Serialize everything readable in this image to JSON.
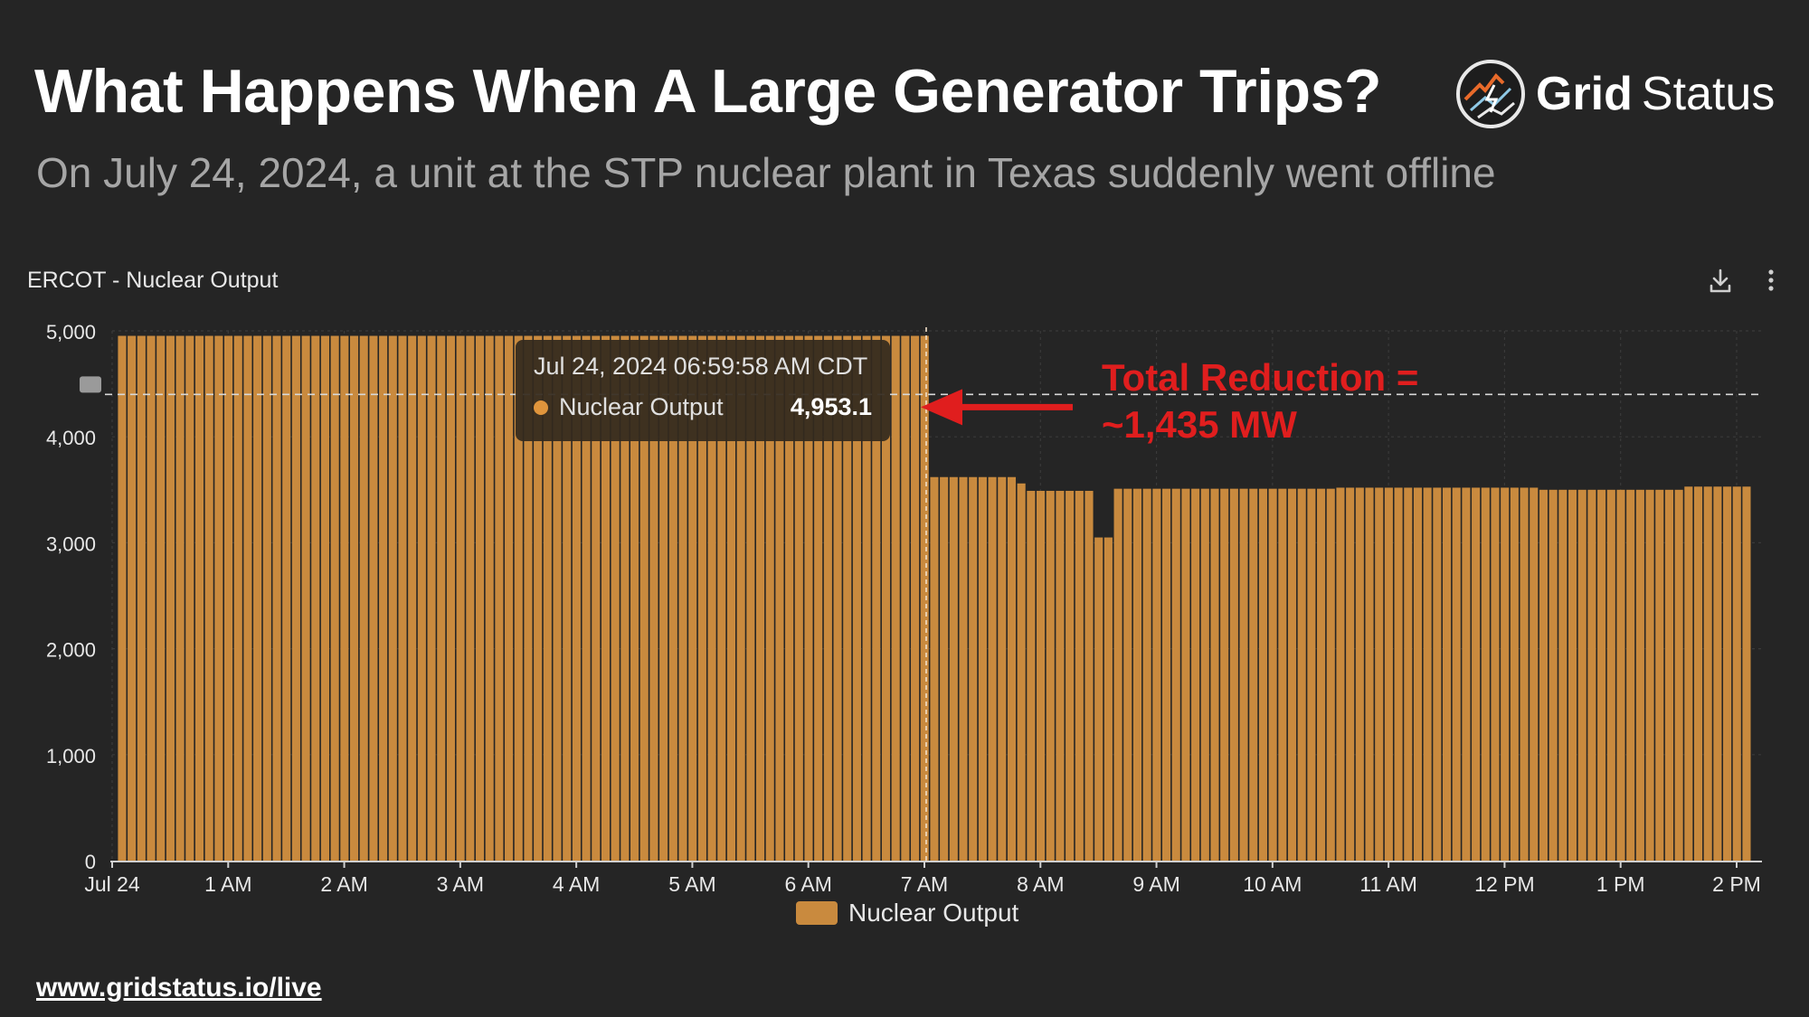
{
  "header": {
    "title": "What Happens When A Large Generator Trips?",
    "subtitle": "On July 24, 2024, a unit at the STP nuclear plant in Texas suddenly went offline"
  },
  "brand": {
    "bold": "Grid",
    "light": "Status"
  },
  "chart_panel": {
    "title": "ERCOT - Nuclear Output",
    "download_icon": "download-icon",
    "menu_icon": "kebab-menu-icon"
  },
  "tooltip": {
    "timestamp": "Jul 24, 2024 06:59:58 AM CDT",
    "series": "Nuclear Output",
    "value": "4,953.1"
  },
  "annotation": {
    "line1": "Total Reduction =",
    "line2": "~1,435 MW"
  },
  "legend": {
    "label": "Nuclear Output"
  },
  "footer": {
    "link": "www.gridstatus.io/live"
  },
  "colors": {
    "background": "#252525",
    "bar": "#c98a3e",
    "annotation": "#e01e1e",
    "grid": "#3a3a3a"
  },
  "chart_data": {
    "type": "bar",
    "title": "ERCOT - Nuclear Output",
    "xlabel": "",
    "ylabel": "",
    "ylim": [
      0,
      5000
    ],
    "yticks": [
      0,
      1000,
      2000,
      3000,
      4000,
      5000
    ],
    "ytick_labels": [
      "0",
      "1,000",
      "2,000",
      "3,000",
      "4,000",
      "5,000"
    ],
    "xlim_hours": [
      0,
      14
    ],
    "xticks": [
      0,
      1,
      2,
      3,
      4,
      5,
      6,
      7,
      8,
      9,
      10,
      11,
      12,
      13,
      14
    ],
    "xtick_labels": [
      "Jul 24",
      "1 AM",
      "2 AM",
      "3 AM",
      "4 AM",
      "5 AM",
      "6 AM",
      "7 AM",
      "8 AM",
      "9 AM",
      "10 AM",
      "11 AM",
      "12 PM",
      "1 PM",
      "2 PM"
    ],
    "interval_minutes": 5,
    "series": [
      {
        "name": "Nuclear Output",
        "segments": [
          {
            "start_hour": 0.0,
            "end_hour": 7.0,
            "value": 4953
          },
          {
            "start_hour": 7.0,
            "end_hour": 7.75,
            "value": 3620
          },
          {
            "start_hour": 7.75,
            "end_hour": 7.833,
            "value": 3560
          },
          {
            "start_hour": 7.833,
            "end_hour": 8.4,
            "value": 3490
          },
          {
            "start_hour": 8.4,
            "end_hour": 8.583,
            "value": 3050
          },
          {
            "start_hour": 8.583,
            "end_hour": 10.5,
            "value": 3510
          },
          {
            "start_hour": 10.5,
            "end_hour": 12.25,
            "value": 3520
          },
          {
            "start_hour": 12.25,
            "end_hour": 13.5,
            "value": 3500
          },
          {
            "start_hour": 13.5,
            "end_hour": 14.08,
            "value": 3530
          }
        ]
      }
    ],
    "reference_line": {
      "value": 4400,
      "style": "dashed"
    },
    "crosshair_hour": 7.0,
    "legend_position": "bottom-center"
  }
}
